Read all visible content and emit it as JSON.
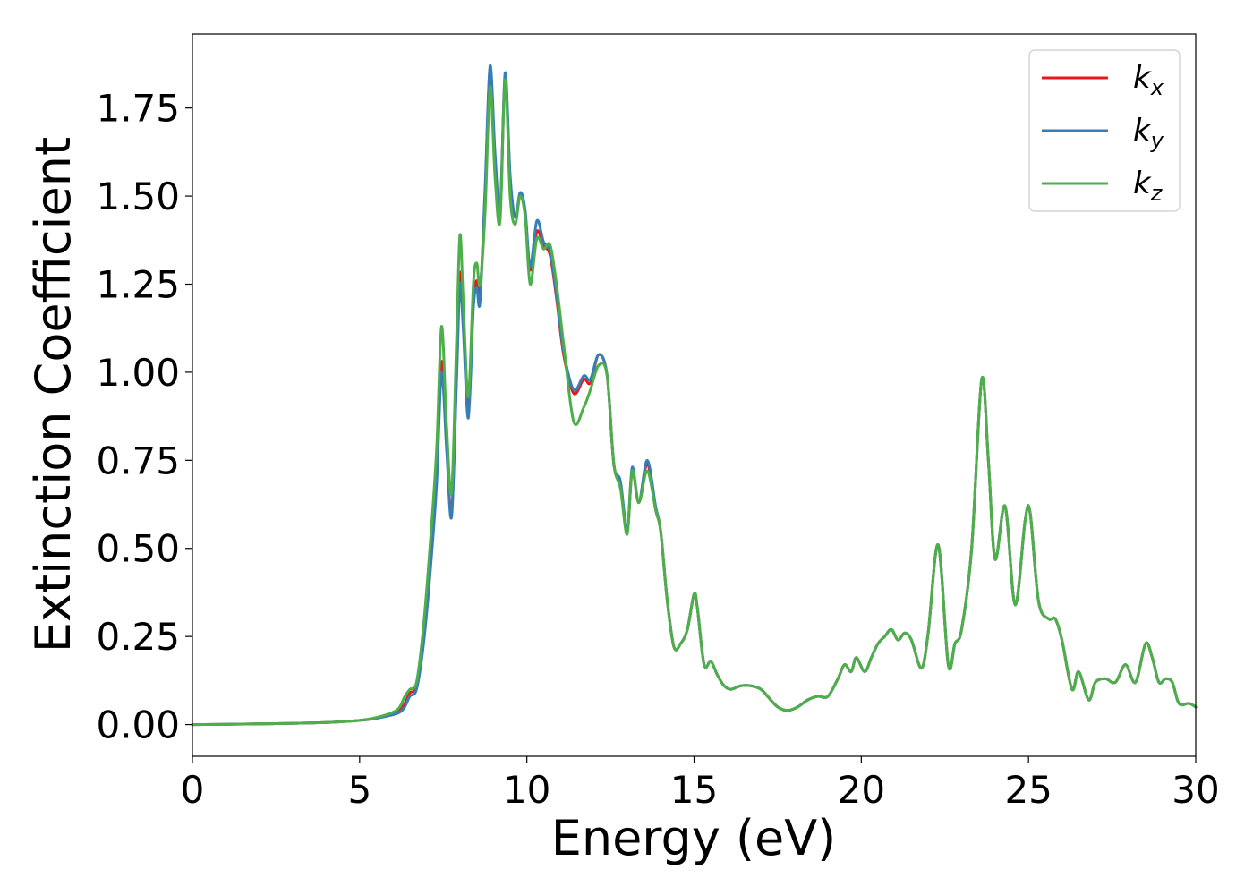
{
  "chart_data": {
    "type": "line",
    "xlabel": "Energy (eV)",
    "ylabel": "Extinction Coefficient",
    "xlim": [
      0,
      30
    ],
    "ylim": [
      -0.09,
      1.96
    ],
    "xticks": [
      "0",
      "5",
      "10",
      "15",
      "20",
      "25",
      "30"
    ],
    "yticks": [
      "0.00",
      "0.25",
      "0.50",
      "0.75",
      "1.00",
      "1.25",
      "1.50",
      "1.75"
    ],
    "grid": false,
    "legend_position": "top-right",
    "series": [
      {
        "name": "kx",
        "legend_main": "k",
        "legend_sub": "x",
        "color": "#e41a1c",
        "x": [
          0,
          2,
          4,
          5,
          5.5,
          6,
          6.2,
          6.35,
          6.5,
          6.7,
          6.9,
          7.1,
          7.3,
          7.45,
          7.6,
          7.75,
          7.9,
          8.0,
          8.1,
          8.25,
          8.4,
          8.5,
          8.6,
          8.75,
          8.9,
          9.05,
          9.2,
          9.35,
          9.5,
          9.65,
          9.8,
          9.95,
          10.1,
          10.3,
          10.5,
          10.7,
          10.9,
          11.1,
          11.4,
          11.7,
          11.9,
          12.15,
          12.4,
          12.6,
          12.8,
          13.0,
          13.15,
          13.35,
          13.6,
          13.85,
          14.0,
          14.2,
          14.4,
          14.6,
          14.8,
          15.0,
          15.1,
          15.3,
          15.5,
          15.7,
          15.9,
          16.1,
          16.4,
          16.7,
          17.0,
          17.2,
          17.5,
          17.8,
          18.1,
          18.4,
          18.7,
          19.0,
          19.3,
          19.5,
          19.7,
          19.85,
          20.1,
          20.3,
          20.5,
          20.7,
          20.9,
          21.1,
          21.3,
          21.5,
          21.8,
          22.0,
          22.3,
          22.6,
          22.8,
          23.0,
          23.3,
          23.6,
          23.8,
          24.0,
          24.3,
          24.6,
          24.9,
          25.05,
          25.3,
          25.6,
          25.8,
          26.0,
          26.3,
          26.5,
          26.8,
          27.0,
          27.3,
          27.6,
          27.9,
          28.2,
          28.5,
          28.7,
          28.9,
          29.1,
          29.3,
          29.5,
          29.8,
          30.0
        ],
        "y": [
          0.0,
          0.002,
          0.006,
          0.012,
          0.018,
          0.03,
          0.04,
          0.06,
          0.09,
          0.11,
          0.25,
          0.45,
          0.7,
          1.03,
          0.8,
          0.6,
          1.0,
          1.28,
          1.15,
          0.9,
          1.2,
          1.26,
          1.22,
          1.5,
          1.86,
          1.6,
          1.45,
          1.84,
          1.55,
          1.44,
          1.5,
          1.45,
          1.29,
          1.4,
          1.36,
          1.33,
          1.2,
          1.05,
          0.94,
          0.98,
          0.97,
          1.05,
          0.99,
          0.74,
          0.68,
          0.55,
          0.72,
          0.63,
          0.74,
          0.61,
          0.55,
          0.35,
          0.22,
          0.23,
          0.27,
          0.37,
          0.33,
          0.17,
          0.18,
          0.14,
          0.11,
          0.1,
          0.11,
          0.11,
          0.1,
          0.08,
          0.05,
          0.04,
          0.05,
          0.07,
          0.08,
          0.08,
          0.13,
          0.17,
          0.15,
          0.19,
          0.15,
          0.19,
          0.23,
          0.25,
          0.27,
          0.24,
          0.26,
          0.24,
          0.16,
          0.26,
          0.51,
          0.17,
          0.23,
          0.27,
          0.5,
          0.98,
          0.75,
          0.47,
          0.62,
          0.34,
          0.58,
          0.6,
          0.35,
          0.3,
          0.3,
          0.24,
          0.1,
          0.15,
          0.07,
          0.12,
          0.13,
          0.12,
          0.17,
          0.12,
          0.23,
          0.19,
          0.12,
          0.13,
          0.12,
          0.06,
          0.06,
          0.05
        ]
      },
      {
        "name": "ky",
        "legend_main": "k",
        "legend_sub": "y",
        "color": "#377eb8",
        "x": [
          0,
          2,
          4,
          5,
          5.5,
          6,
          6.2,
          6.35,
          6.5,
          6.7,
          6.9,
          7.1,
          7.3,
          7.45,
          7.6,
          7.75,
          7.9,
          8.0,
          8.1,
          8.25,
          8.4,
          8.5,
          8.6,
          8.75,
          8.9,
          9.05,
          9.2,
          9.35,
          9.5,
          9.65,
          9.8,
          9.95,
          10.1,
          10.3,
          10.5,
          10.7,
          10.9,
          11.1,
          11.4,
          11.7,
          11.9,
          12.15,
          12.4,
          12.6,
          12.8,
          13.0,
          13.15,
          13.35,
          13.6,
          13.85,
          14.0,
          14.2,
          14.4,
          14.6,
          14.8,
          15.0,
          15.1,
          15.3,
          15.5,
          15.7,
          15.9,
          16.1,
          16.4,
          16.7,
          17.0,
          17.2,
          17.5,
          17.8,
          18.1,
          18.4,
          18.7,
          19.0,
          19.3,
          19.5,
          19.7,
          19.85,
          20.1,
          20.3,
          20.5,
          20.7,
          20.9,
          21.1,
          21.3,
          21.5,
          21.8,
          22.0,
          22.3,
          22.6,
          22.8,
          23.0,
          23.3,
          23.6,
          23.8,
          24.0,
          24.3,
          24.6,
          24.9,
          25.05,
          25.3,
          25.6,
          25.8,
          26.0,
          26.3,
          26.5,
          26.8,
          27.0,
          27.3,
          27.6,
          27.9,
          28.2,
          28.5,
          28.7,
          28.9,
          29.1,
          29.3,
          29.5,
          29.8,
          30.0
        ],
        "y": [
          0.0,
          0.002,
          0.006,
          0.012,
          0.018,
          0.028,
          0.035,
          0.05,
          0.08,
          0.1,
          0.22,
          0.42,
          0.68,
          1.0,
          0.78,
          0.59,
          0.98,
          1.25,
          1.12,
          0.87,
          1.18,
          1.24,
          1.2,
          1.52,
          1.87,
          1.62,
          1.46,
          1.85,
          1.56,
          1.44,
          1.51,
          1.46,
          1.3,
          1.43,
          1.37,
          1.34,
          1.21,
          1.06,
          0.95,
          0.99,
          0.98,
          1.05,
          0.99,
          0.74,
          0.69,
          0.55,
          0.73,
          0.63,
          0.75,
          0.62,
          0.55,
          0.35,
          0.22,
          0.23,
          0.27,
          0.37,
          0.33,
          0.17,
          0.18,
          0.14,
          0.11,
          0.1,
          0.11,
          0.11,
          0.1,
          0.08,
          0.05,
          0.04,
          0.05,
          0.07,
          0.08,
          0.08,
          0.13,
          0.17,
          0.15,
          0.19,
          0.15,
          0.19,
          0.23,
          0.25,
          0.27,
          0.24,
          0.26,
          0.24,
          0.16,
          0.26,
          0.51,
          0.17,
          0.23,
          0.27,
          0.5,
          0.98,
          0.75,
          0.47,
          0.62,
          0.34,
          0.58,
          0.6,
          0.35,
          0.3,
          0.3,
          0.24,
          0.1,
          0.15,
          0.07,
          0.12,
          0.13,
          0.12,
          0.17,
          0.12,
          0.23,
          0.19,
          0.12,
          0.13,
          0.12,
          0.06,
          0.06,
          0.05
        ]
      },
      {
        "name": "kz",
        "legend_main": "k",
        "legend_sub": "z",
        "color": "#4daf4a",
        "x": [
          0,
          2,
          4,
          5,
          5.5,
          6,
          6.2,
          6.35,
          6.5,
          6.7,
          6.9,
          7.1,
          7.3,
          7.45,
          7.6,
          7.75,
          7.9,
          8.0,
          8.1,
          8.25,
          8.4,
          8.5,
          8.6,
          8.75,
          8.9,
          9.05,
          9.2,
          9.35,
          9.5,
          9.65,
          9.8,
          9.95,
          10.1,
          10.3,
          10.5,
          10.7,
          10.9,
          11.1,
          11.4,
          11.7,
          11.9,
          12.15,
          12.4,
          12.6,
          12.8,
          13.0,
          13.15,
          13.35,
          13.6,
          13.85,
          14.0,
          14.2,
          14.4,
          14.6,
          14.8,
          15.0,
          15.1,
          15.3,
          15.5,
          15.7,
          15.9,
          16.1,
          16.4,
          16.7,
          17.0,
          17.2,
          17.5,
          17.8,
          18.1,
          18.4,
          18.7,
          19.0,
          19.3,
          19.5,
          19.7,
          19.85,
          20.1,
          20.3,
          20.5,
          20.7,
          20.9,
          21.1,
          21.3,
          21.5,
          21.8,
          22.0,
          22.3,
          22.6,
          22.8,
          23.0,
          23.3,
          23.6,
          23.8,
          24.0,
          24.3,
          24.6,
          24.9,
          25.05,
          25.3,
          25.6,
          25.8,
          26.0,
          26.3,
          26.5,
          26.8,
          27.0,
          27.3,
          27.6,
          27.9,
          28.2,
          28.5,
          28.7,
          28.9,
          29.1,
          29.3,
          29.5,
          29.8,
          30.0
        ],
        "y": [
          0.0,
          0.002,
          0.006,
          0.012,
          0.02,
          0.035,
          0.05,
          0.08,
          0.1,
          0.12,
          0.27,
          0.5,
          0.78,
          1.13,
          0.85,
          0.66,
          1.1,
          1.39,
          1.2,
          0.93,
          1.25,
          1.31,
          1.25,
          1.45,
          1.81,
          1.55,
          1.43,
          1.83,
          1.5,
          1.42,
          1.5,
          1.44,
          1.25,
          1.38,
          1.35,
          1.36,
          1.24,
          1.08,
          0.86,
          0.9,
          0.95,
          1.02,
          0.99,
          0.74,
          0.67,
          0.54,
          0.72,
          0.63,
          0.72,
          0.61,
          0.55,
          0.35,
          0.22,
          0.23,
          0.27,
          0.37,
          0.33,
          0.17,
          0.18,
          0.14,
          0.11,
          0.1,
          0.11,
          0.11,
          0.1,
          0.08,
          0.05,
          0.04,
          0.05,
          0.07,
          0.08,
          0.08,
          0.13,
          0.17,
          0.15,
          0.19,
          0.15,
          0.19,
          0.23,
          0.25,
          0.27,
          0.24,
          0.26,
          0.24,
          0.16,
          0.26,
          0.51,
          0.17,
          0.23,
          0.27,
          0.5,
          0.98,
          0.75,
          0.47,
          0.62,
          0.34,
          0.58,
          0.6,
          0.35,
          0.3,
          0.3,
          0.24,
          0.1,
          0.15,
          0.07,
          0.12,
          0.13,
          0.12,
          0.17,
          0.12,
          0.23,
          0.19,
          0.12,
          0.13,
          0.12,
          0.06,
          0.06,
          0.05
        ]
      }
    ]
  }
}
